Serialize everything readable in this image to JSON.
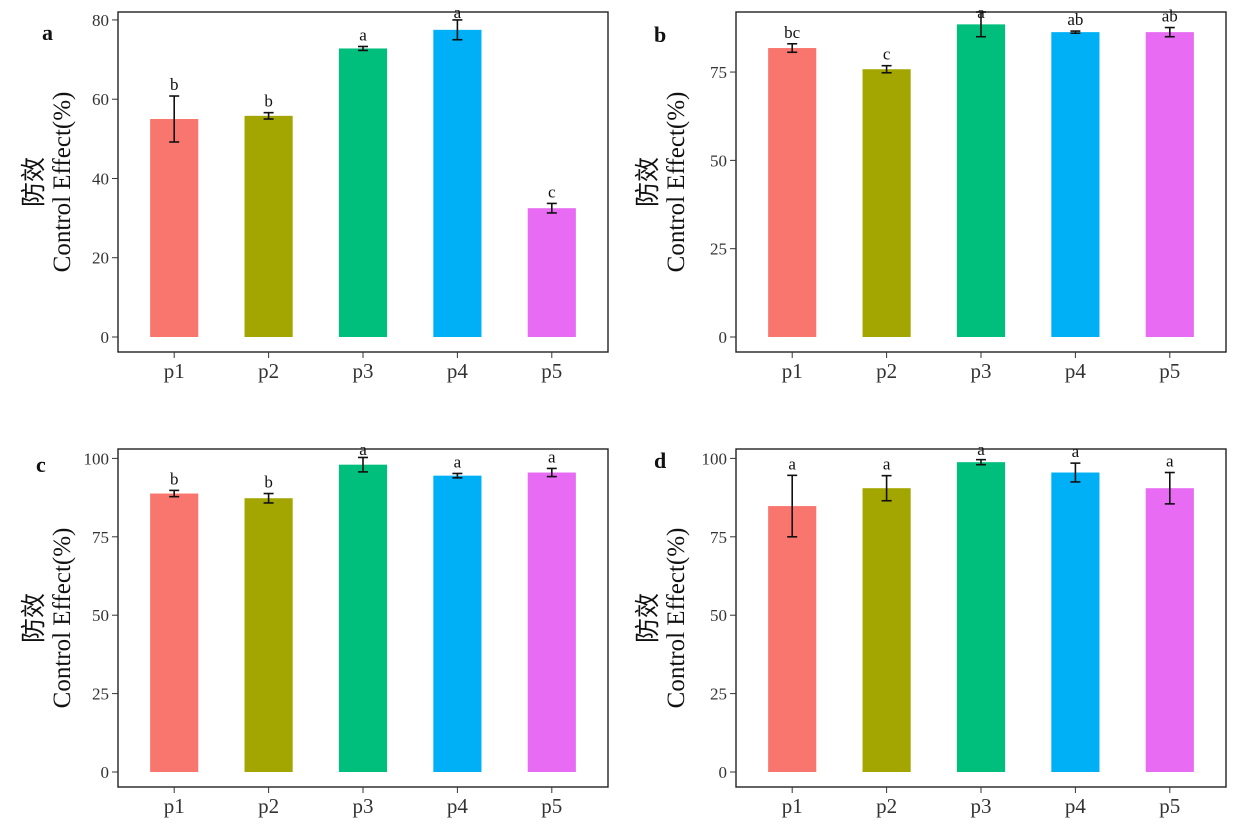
{
  "colors": [
    "#F8766D",
    "#A3A500",
    "#00BF7D",
    "#00B0F6",
    "#E76BF3"
  ],
  "chart_data": [
    {
      "type": "bar",
      "panel": "a",
      "ylabel_lines": [
        "防效",
        "Control Effect(%)"
      ],
      "categories": [
        "p1",
        "p2",
        "p3",
        "p4",
        "p5"
      ],
      "values": [
        55,
        55.8,
        72.8,
        77.5,
        32.5
      ],
      "errors": [
        5.8,
        0.8,
        0.5,
        2.5,
        1.2
      ],
      "significance": [
        "b",
        "b",
        "a",
        "a",
        "c"
      ],
      "ylim": [
        0,
        82
      ],
      "yticks": [
        0,
        20,
        40,
        60,
        80
      ],
      "grid": false
    },
    {
      "type": "bar",
      "panel": "b",
      "ylabel_lines": [
        "防效",
        "Control Effect(%)"
      ],
      "categories": [
        "p1",
        "p2",
        "p3",
        "p4",
        "p5"
      ],
      "values": [
        81.8,
        75.8,
        88.5,
        86.3,
        86.3
      ],
      "errors": [
        1.2,
        1.0,
        3.5,
        0.3,
        1.3
      ],
      "significance": [
        "bc",
        "c",
        "a",
        "ab",
        "ab"
      ],
      "ylim": [
        0,
        92
      ],
      "yticks": [
        0,
        25,
        50,
        75
      ],
      "grid": false
    },
    {
      "type": "bar",
      "panel": "c",
      "ylabel_lines": [
        "防效",
        "Control Effect(%)"
      ],
      "categories": [
        "p1",
        "p2",
        "p3",
        "p4",
        "p5"
      ],
      "values": [
        88.8,
        87.3,
        98,
        94.5,
        95.5
      ],
      "errors": [
        1.0,
        1.5,
        2.3,
        0.7,
        1.3
      ],
      "significance": [
        "b",
        "b",
        "a",
        "a",
        "a"
      ],
      "ylim": [
        0,
        103
      ],
      "yticks": [
        0,
        25,
        50,
        75,
        100
      ],
      "grid": false
    },
    {
      "type": "bar",
      "panel": "d",
      "ylabel_lines": [
        "防效",
        "Control Effect(%)"
      ],
      "categories": [
        "p1",
        "p2",
        "p3",
        "p4",
        "p5"
      ],
      "values": [
        84.8,
        90.5,
        98.8,
        95.5,
        90.5
      ],
      "errors": [
        9.8,
        4.0,
        0.8,
        3.0,
        5.0
      ],
      "significance": [
        "a",
        "a",
        "a",
        "a",
        "a"
      ],
      "ylim": [
        0,
        103
      ],
      "yticks": [
        0,
        25,
        50,
        75,
        100
      ],
      "grid": false
    }
  ]
}
